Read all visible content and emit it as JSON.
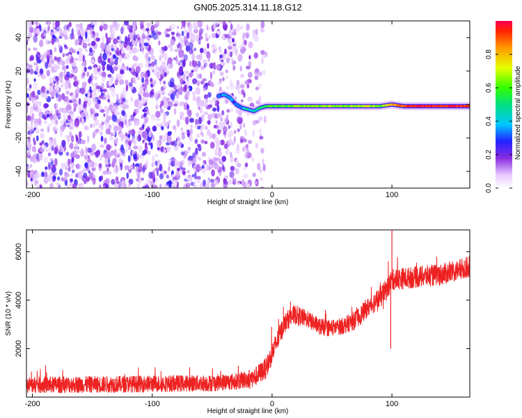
{
  "title": "GN05.2025.314.11.18.G12",
  "colors": {
    "snr_line": "#ee2222",
    "frame": "#000000"
  },
  "chart_data": [
    {
      "type": "heatmap",
      "xlabel": "Height of straight line (km)",
      "ylabel": "Frequency (Hz)",
      "xlim": [
        -205,
        165
      ],
      "ylim": [
        -50,
        50
      ],
      "xticks": [
        -200,
        -100,
        0,
        100
      ],
      "yticks": [
        -40,
        -20,
        0,
        20,
        40
      ],
      "colorbar": {
        "label": "Normalized spectral amplitude",
        "range": [
          0,
          1
        ],
        "ticks": [
          "0.0",
          "0.2",
          "0.4",
          "0.6",
          "0.8"
        ]
      },
      "ridge": {
        "x": [
          -45,
          -40,
          -35,
          -30,
          -25,
          -20,
          -15,
          -10,
          -5,
          0,
          10,
          20,
          40,
          60,
          80,
          90,
          100,
          110,
          120,
          140,
          165
        ],
        "freq": [
          5,
          6,
          4,
          0,
          -2,
          -3,
          -4,
          -2,
          -1,
          -1,
          -1,
          -1,
          -1,
          -1,
          -1,
          -1,
          0,
          -1,
          -1,
          -1,
          -1
        ],
        "amplitude": [
          0.3,
          0.35,
          0.4,
          0.3,
          0.35,
          0.45,
          0.4,
          0.5,
          0.55,
          0.6,
          0.6,
          0.65,
          0.65,
          0.65,
          0.7,
          0.6,
          0.8,
          0.9,
          0.95,
          0.95,
          0.95
        ]
      },
      "noise_region_x": [
        -205,
        -20
      ]
    },
    {
      "type": "line",
      "xlabel": "Height of straight line (km)",
      "ylabel": "SNR (10 * v/v)",
      "xlim": [
        -205,
        165
      ],
      "ylim": [
        0,
        6900
      ],
      "xticks": [
        -200,
        -100,
        0,
        100
      ],
      "yticks": [
        2000,
        4000,
        6000
      ],
      "series": [
        {
          "x": [
            -205,
            -150,
            -100,
            -50,
            -30,
            -15,
            -5,
            0,
            5,
            10,
            15,
            20,
            30,
            40,
            50,
            60,
            70,
            80,
            90,
            95,
            100,
            110,
            120,
            130,
            140,
            150,
            160,
            165
          ],
          "y": [
            500,
            520,
            550,
            580,
            650,
            800,
            1200,
            1800,
            2400,
            3000,
            3300,
            3400,
            3200,
            2900,
            2850,
            2950,
            3200,
            3700,
            4100,
            4400,
            4850,
            4900,
            4950,
            5000,
            5050,
            5150,
            5300,
            5400
          ],
          "spread": [
            700,
            700,
            700,
            700,
            700,
            800,
            900,
            900,
            900,
            800,
            800,
            800,
            700,
            700,
            700,
            700,
            800,
            800,
            900,
            900,
            900,
            900,
            900,
            900,
            900,
            900,
            900,
            900
          ],
          "spikes": [
            {
              "x": 100,
              "y": 6900
            },
            {
              "x": 99,
              "y": 2000
            }
          ]
        }
      ]
    }
  ]
}
